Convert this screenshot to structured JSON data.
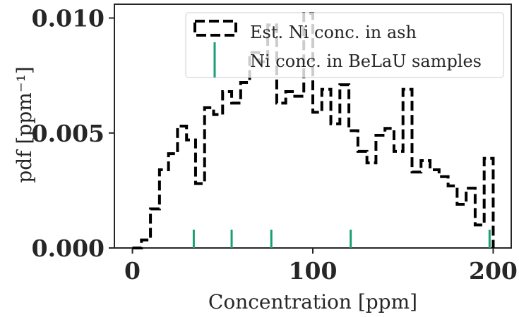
{
  "chart_data": {
    "type": "line",
    "title": "",
    "xlabel": "Concentration [ppm]",
    "ylabel": "pdf [ppm⁻¹]",
    "xlim": [
      -10,
      210
    ],
    "ylim": [
      0,
      0.0106
    ],
    "x_ticks": [
      0,
      100,
      200
    ],
    "x_tick_labels": [
      "0",
      "100",
      "200"
    ],
    "y_ticks": [
      0,
      0.005,
      0.01
    ],
    "y_tick_labels": [
      "0.000",
      "0.005",
      "0.010"
    ],
    "grid": false,
    "legend_position": "top-right",
    "series": [
      {
        "name": "Est. Ni conc. in ash",
        "style": "dashed-step",
        "color": "#000000",
        "bin_edges": [
          0,
          5,
          10,
          15,
          20,
          25,
          30,
          35,
          40,
          45,
          50,
          55,
          60,
          65,
          70,
          75,
          80,
          85,
          90,
          95,
          100,
          105,
          110,
          115,
          120,
          125,
          130,
          135,
          140,
          145,
          150,
          155,
          160,
          165,
          170,
          175,
          180,
          185,
          190,
          195,
          200
        ],
        "values": [
          0.0,
          0.00035,
          0.0017,
          0.0034,
          0.0041,
          0.0053,
          0.0047,
          0.0028,
          0.0061,
          0.0058,
          0.0068,
          0.0063,
          0.0072,
          0.0085,
          0.0081,
          0.0097,
          0.0063,
          0.0068,
          0.0066,
          0.0102,
          0.0059,
          0.0069,
          0.0054,
          0.0071,
          0.0051,
          0.0042,
          0.0037,
          0.0049,
          0.0052,
          0.0042,
          0.0069,
          0.0033,
          0.0038,
          0.0034,
          0.0031,
          0.0027,
          0.0019,
          0.0026,
          0.001,
          0.0039
        ]
      },
      {
        "name": "Ni conc. in BeLaU samples",
        "style": "rug",
        "color": "#1a9e77",
        "values": [
          34,
          55,
          77,
          121,
          198
        ]
      }
    ]
  }
}
